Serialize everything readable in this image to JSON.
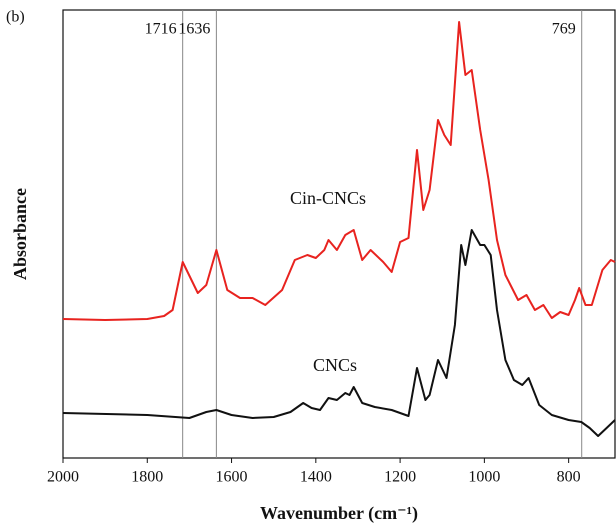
{
  "chart_data": {
    "type": "line",
    "panel_label": "(b)",
    "xlabel": "Wavenumber (cm⁻¹)",
    "ylabel": "Absorbance",
    "xlim": [
      2000,
      690
    ],
    "xticks": [
      2000,
      1800,
      1600,
      1400,
      1200,
      1000,
      800
    ],
    "ylim": [
      0,
      448
    ],
    "markers": [
      {
        "value": 1716,
        "label": "1716"
      },
      {
        "value": 1636,
        "label": "1636"
      },
      {
        "value": 769,
        "label": "769"
      }
    ],
    "series": [
      {
        "name": "Cin-CNCs",
        "color": "#e8231f",
        "x": [
          2000,
          1900,
          1800,
          1760,
          1740,
          1716,
          1680,
          1660,
          1636,
          1610,
          1580,
          1550,
          1520,
          1480,
          1450,
          1420,
          1400,
          1380,
          1370,
          1350,
          1330,
          1310,
          1290,
          1270,
          1240,
          1220,
          1200,
          1180,
          1160,
          1145,
          1130,
          1110,
          1095,
          1080,
          1060,
          1045,
          1030,
          1010,
          990,
          970,
          950,
          920,
          900,
          880,
          860,
          840,
          820,
          800,
          785,
          775,
          760,
          745,
          720,
          700,
          690
        ],
        "values": [
          139,
          138,
          139,
          142,
          148,
          196,
          165,
          173,
          208,
          168,
          160,
          160,
          153,
          168,
          198,
          203,
          200,
          208,
          218,
          208,
          223,
          228,
          198,
          208,
          196,
          186,
          216,
          220,
          308,
          248,
          268,
          338,
          323,
          313,
          436,
          383,
          388,
          328,
          278,
          218,
          183,
          158,
          163,
          148,
          153,
          140,
          146,
          143,
          158,
          170,
          153,
          153,
          188,
          198,
          196
        ]
      },
      {
        "name": "CNCs",
        "color": "#111111",
        "x": [
          2000,
          1800,
          1700,
          1660,
          1636,
          1600,
          1550,
          1500,
          1460,
          1430,
          1410,
          1390,
          1370,
          1350,
          1330,
          1320,
          1310,
          1290,
          1260,
          1220,
          1200,
          1180,
          1160,
          1140,
          1130,
          1110,
          1090,
          1070,
          1055,
          1045,
          1030,
          1010,
          1000,
          985,
          970,
          950,
          930,
          910,
          895,
          870,
          840,
          800,
          770,
          750,
          730,
          710,
          690
        ],
        "values": [
          45,
          43,
          40,
          46,
          48,
          43,
          40,
          41,
          46,
          55,
          50,
          48,
          60,
          58,
          65,
          63,
          71,
          55,
          51,
          48,
          45,
          42,
          90,
          58,
          63,
          98,
          80,
          133,
          213,
          193,
          228,
          213,
          213,
          203,
          148,
          98,
          78,
          73,
          80,
          53,
          43,
          38,
          36,
          30,
          22,
          30,
          38
        ]
      }
    ]
  }
}
